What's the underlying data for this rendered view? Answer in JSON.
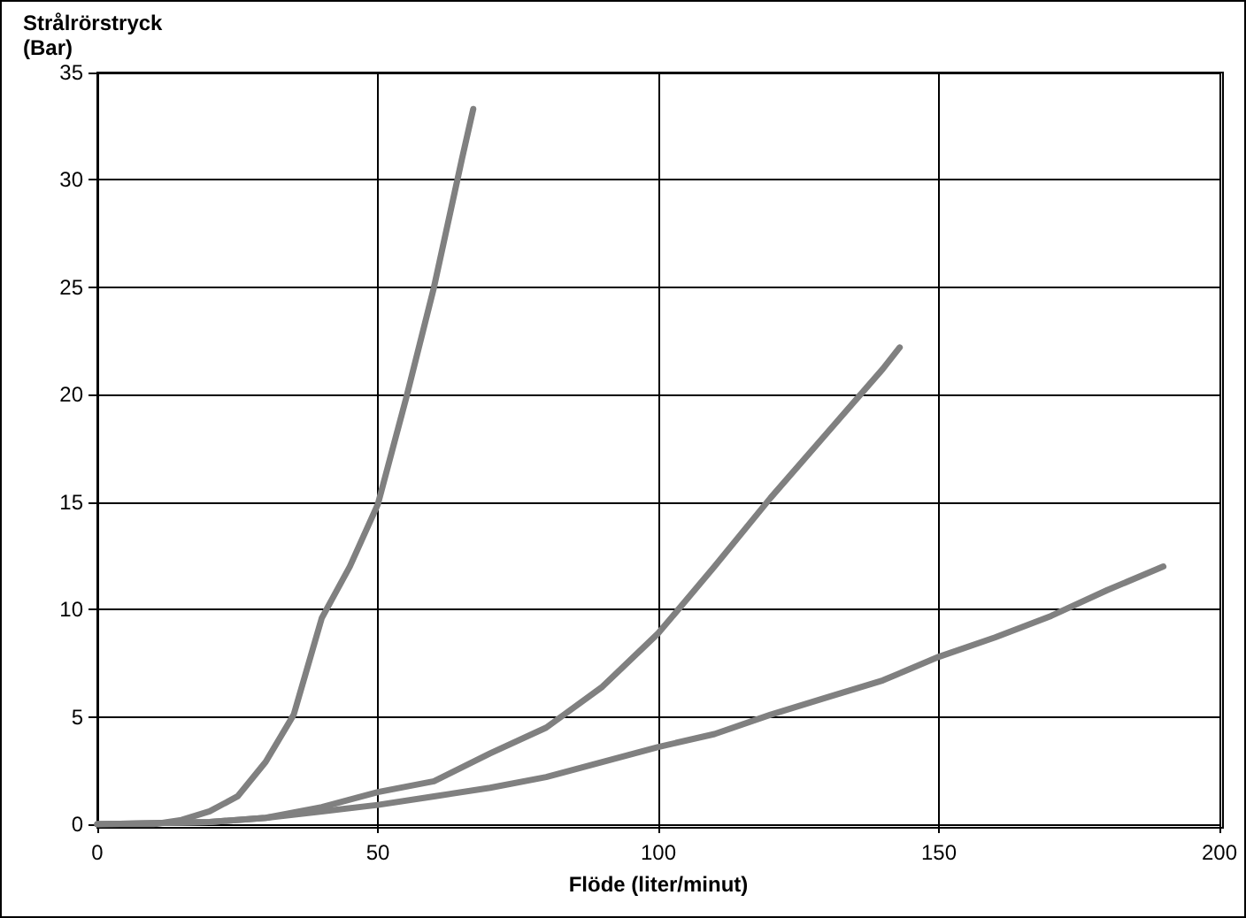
{
  "chart_data": {
    "type": "line",
    "ylabel": "Strålrörstryck\n(Bar)",
    "xlabel": "Flöde (liter/minut)",
    "xlim": [
      0,
      200
    ],
    "xticks": [
      0,
      50,
      100,
      150,
      200
    ],
    "ylim": [
      0,
      35
    ],
    "yticks": [
      0,
      5,
      10,
      15,
      20,
      25,
      30,
      35
    ],
    "grid": true,
    "marker": "none",
    "line_style": "solid",
    "series": [
      {
        "color": "#808080",
        "x": [
          0,
          10,
          15,
          20,
          25,
          30,
          35,
          40,
          45,
          50,
          55,
          60,
          65,
          67
        ],
        "values": [
          0,
          0,
          0.2,
          0.6,
          1.3,
          2.9,
          5.1,
          9.6,
          12,
          14.9,
          19.8,
          25,
          31,
          33.3
        ]
      },
      {
        "color": "#808080",
        "x": [
          0,
          20,
          30,
          40,
          50,
          60,
          70,
          80,
          90,
          100,
          110,
          120,
          130,
          140,
          143
        ],
        "values": [
          0,
          0.1,
          0.3,
          0.8,
          1.5,
          2,
          3.3,
          4.5,
          6.4,
          8.9,
          12,
          15.2,
          18.2,
          21.2,
          22.2
        ]
      },
      {
        "color": "#808080",
        "x": [
          0,
          20,
          30,
          40,
          50,
          60,
          70,
          80,
          90,
          100,
          110,
          120,
          130,
          140,
          150,
          160,
          170,
          180,
          190
        ],
        "values": [
          0,
          0.1,
          0.3,
          0.6,
          0.9,
          1.3,
          1.7,
          2.2,
          2.9,
          3.6,
          4.2,
          5.1,
          5.9,
          6.7,
          7.8,
          8.7,
          9.7,
          10.9,
          12
        ]
      }
    ]
  }
}
